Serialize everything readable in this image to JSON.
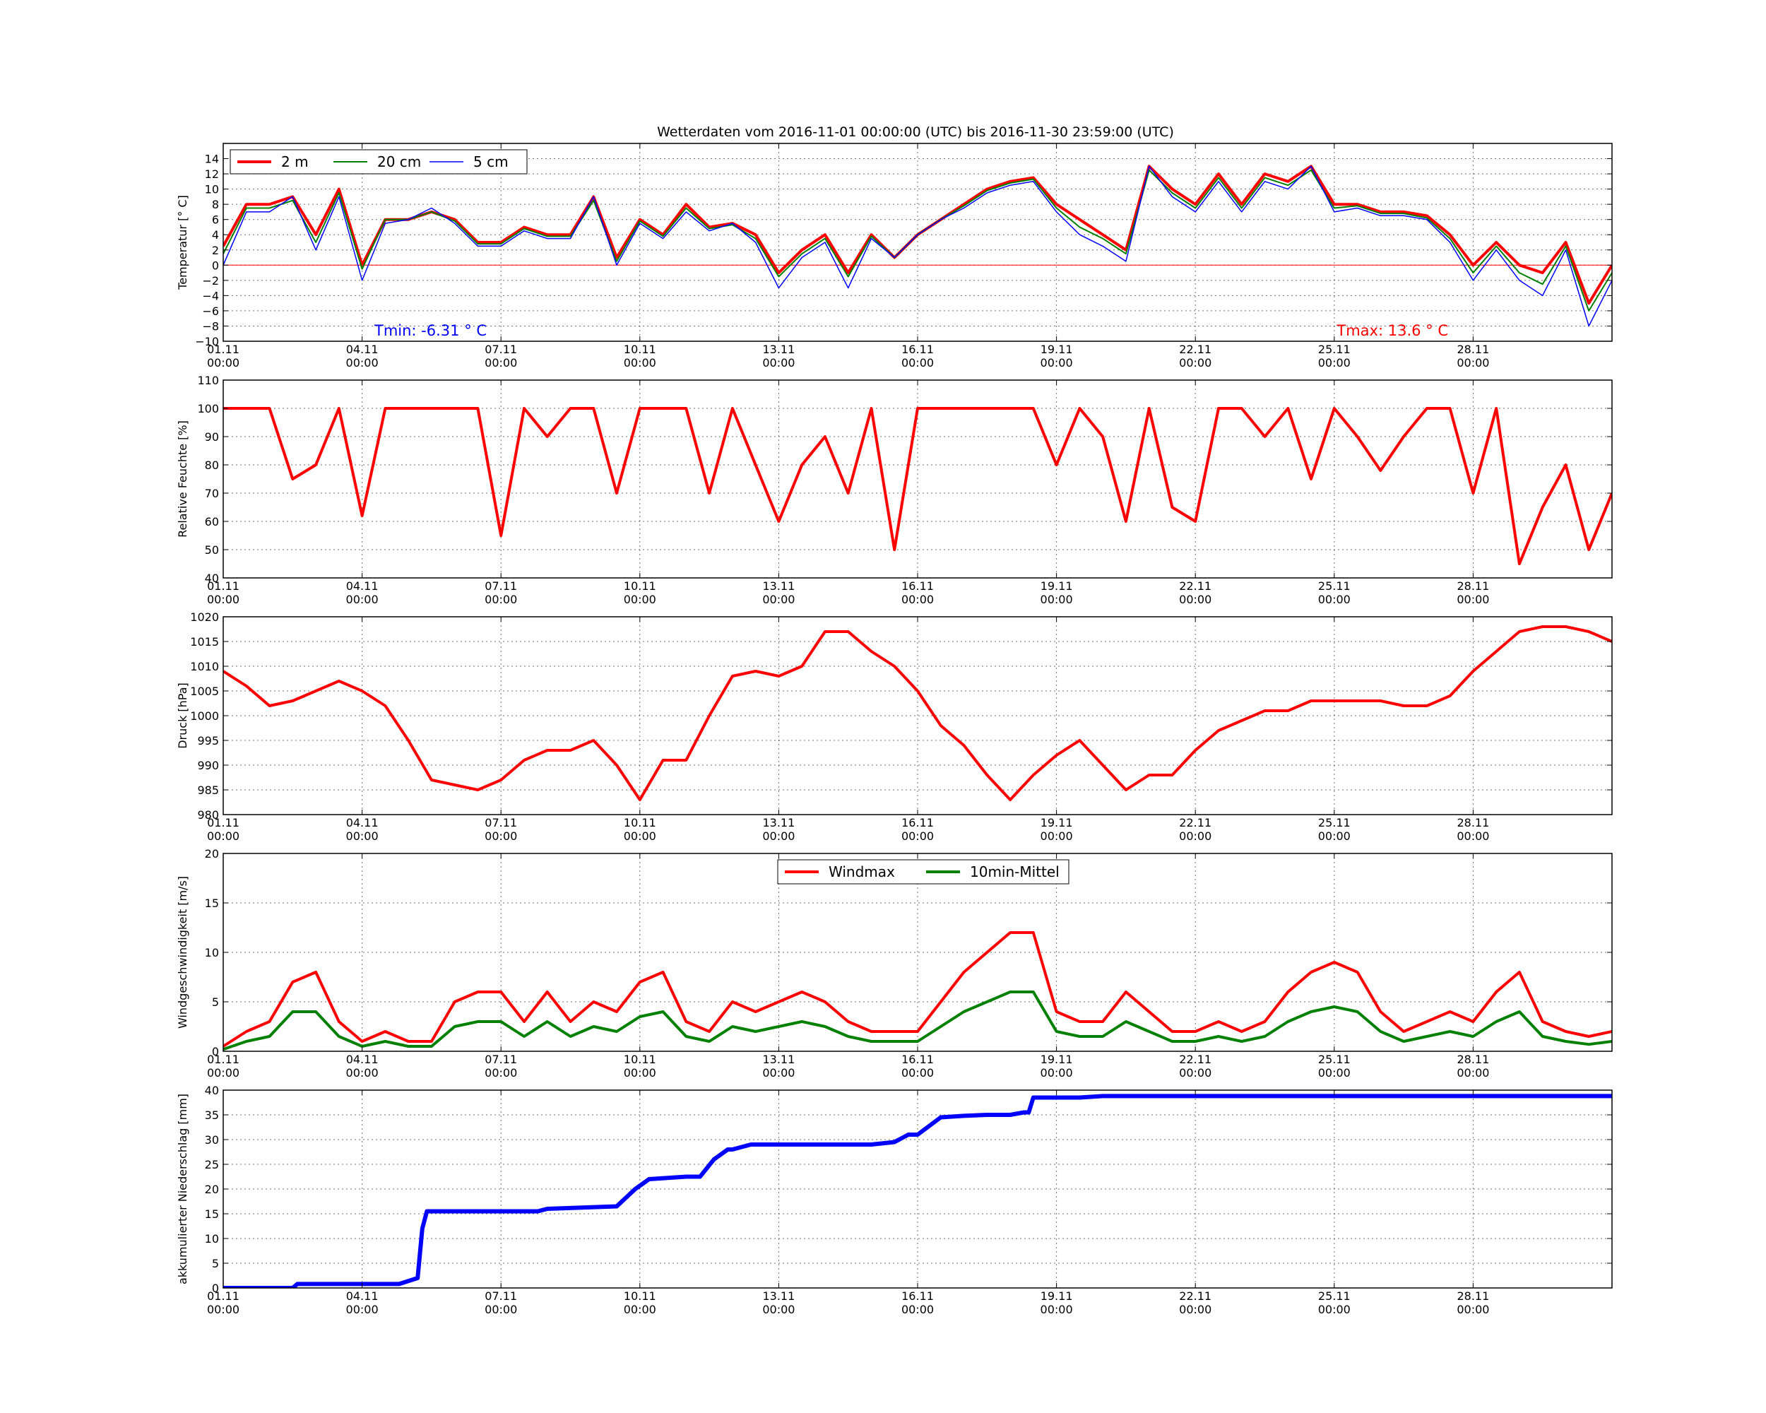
{
  "title": "Wetterdaten vom 2016-11-01 00:00:00 (UTC) bis 2016-11-30 23:59:00 (UTC)",
  "x_ticks": [
    {
      "day": 0,
      "label": "01.11\n00:00"
    },
    {
      "day": 3,
      "label": "04.11\n00:00"
    },
    {
      "day": 6,
      "label": "07.11\n00:00"
    },
    {
      "day": 9,
      "label": "10.11\n00:00"
    },
    {
      "day": 12,
      "label": "13.11\n00:00"
    },
    {
      "day": 15,
      "label": "16.11\n00:00"
    },
    {
      "day": 18,
      "label": "19.11\n00:00"
    },
    {
      "day": 21,
      "label": "22.11\n00:00"
    },
    {
      "day": 24,
      "label": "25.11\n00:00"
    },
    {
      "day": 27,
      "label": "28.11\n00:00"
    }
  ],
  "colors": {
    "red": "#ff0000",
    "green": "#008000",
    "blue": "#0000ff",
    "zero_line": "#ff0000"
  },
  "chart_data": [
    {
      "type": "line",
      "id": "temperature",
      "ylabel": "Temperatur [° C]",
      "xlim": [
        0,
        30
      ],
      "ylim": [
        -10,
        16
      ],
      "yticks": [
        -10,
        -8,
        -6,
        -4,
        -2,
        0,
        2,
        4,
        6,
        8,
        10,
        12,
        14
      ],
      "grid": true,
      "legend": {
        "placement": "top-left",
        "columns": 3
      },
      "annotations": [
        {
          "text": "Tmin: -6.31 ° C",
          "color": "#0000ff",
          "anchor": "bottom-left"
        },
        {
          "text": "Tmax: 13.6 ° C",
          "color": "#ff0000",
          "anchor": "bottom-right"
        }
      ],
      "reference_line": {
        "y": 0,
        "color": "#ff0000"
      },
      "x": [
        0,
        0.5,
        1,
        1.5,
        2,
        2.5,
        3,
        3.5,
        4,
        4.5,
        5,
        5.5,
        6,
        6.5,
        7,
        7.5,
        8,
        8.5,
        9,
        9.5,
        10,
        10.5,
        11,
        11.5,
        12,
        12.5,
        13,
        13.5,
        14,
        14.5,
        15,
        15.5,
        16,
        16.5,
        17,
        17.5,
        18,
        18.5,
        19,
        19.5,
        20,
        20.5,
        21,
        21.5,
        22,
        22.5,
        23,
        23.5,
        24,
        24.5,
        25,
        25.5,
        26,
        26.5,
        27,
        27.5,
        28,
        28.5,
        29,
        29.5,
        30
      ],
      "series": [
        {
          "name": "2 m",
          "color": "#ff0000",
          "width": 4,
          "values": [
            2.5,
            8,
            8,
            9,
            4,
            10,
            0,
            6,
            6,
            7,
            6,
            3,
            3,
            5,
            4,
            4,
            9,
            1,
            6,
            4,
            8,
            5,
            5.5,
            4,
            -1,
            2,
            4,
            -1,
            4,
            1,
            4,
            6,
            8,
            10,
            11,
            11.5,
            8,
            6,
            4,
            2,
            13,
            10,
            8,
            12,
            8,
            12,
            11,
            13,
            8,
            8,
            7,
            7,
            6.5,
            4,
            0,
            3,
            0,
            -1,
            3,
            -5,
            0
          ]
        },
        {
          "name": "20 cm",
          "color": "#008000",
          "width": 2,
          "values": [
            1.5,
            7.5,
            7.5,
            8.5,
            3,
            9.5,
            -0.5,
            6,
            6,
            7,
            5.8,
            2.8,
            2.8,
            4.8,
            3.8,
            3.8,
            8.5,
            0.5,
            5.8,
            3.8,
            7.5,
            4.8,
            5.3,
            3.5,
            -1.5,
            1.5,
            3.5,
            -1.5,
            3.8,
            1,
            4,
            6,
            7.8,
            9.8,
            10.8,
            11.3,
            7.5,
            5,
            3.5,
            1.5,
            12.5,
            9.5,
            7.5,
            11.5,
            7.5,
            11.5,
            10.5,
            12.5,
            7.5,
            7.8,
            6.8,
            6.8,
            6.2,
            3.5,
            -1,
            2.5,
            -1,
            -2.5,
            2.5,
            -6,
            -1
          ]
        },
        {
          "name": "5 cm",
          "color": "#0000ff",
          "width": 1.5,
          "values": [
            0,
            7,
            7,
            9,
            2,
            9,
            -2,
            5.5,
            6,
            7.5,
            5.5,
            2.5,
            2.5,
            4.5,
            3.5,
            3.5,
            9,
            0,
            5.5,
            3.5,
            7,
            4.5,
            5.5,
            3,
            -3,
            1,
            3,
            -3,
            3.5,
            1,
            4,
            6,
            7.5,
            9.5,
            10.5,
            11,
            7,
            4,
            2.5,
            0.5,
            13,
            9,
            7,
            11,
            7,
            11,
            10,
            13,
            7,
            7.5,
            6.5,
            6.5,
            6,
            3,
            -2,
            2,
            -2,
            -4,
            2,
            -8,
            -2
          ]
        }
      ]
    },
    {
      "type": "line",
      "id": "humidity",
      "ylabel": "Relative Feuchte [%]",
      "xlim": [
        0,
        30
      ],
      "ylim": [
        40,
        110
      ],
      "yticks": [
        40,
        50,
        60,
        70,
        80,
        90,
        100,
        110
      ],
      "grid": true,
      "x": [
        0,
        0.5,
        1,
        1.5,
        2,
        2.5,
        3,
        3.5,
        4,
        4.5,
        5,
        5.5,
        6,
        6.5,
        7,
        7.5,
        8,
        8.5,
        9,
        9.5,
        10,
        10.5,
        11,
        11.5,
        12,
        12.5,
        13,
        13.5,
        14,
        14.5,
        15,
        15.5,
        16,
        16.5,
        17,
        17.5,
        18,
        18.5,
        19,
        19.5,
        20,
        20.5,
        21,
        21.5,
        22,
        22.5,
        23,
        23.5,
        24,
        24.5,
        25,
        25.5,
        26,
        26.5,
        27,
        27.5,
        28,
        28.5,
        29,
        29.5,
        30
      ],
      "series": [
        {
          "name": "",
          "color": "#ff0000",
          "width": 4,
          "values": [
            100,
            100,
            100,
            75,
            80,
            100,
            62,
            100,
            100,
            100,
            100,
            100,
            55,
            100,
            90,
            100,
            100,
            70,
            100,
            100,
            100,
            70,
            100,
            80,
            60,
            80,
            90,
            70,
            100,
            50,
            100,
            100,
            100,
            100,
            100,
            100,
            80,
            100,
            90,
            60,
            100,
            65,
            60,
            100,
            100,
            90,
            100,
            75,
            100,
            90,
            78,
            90,
            100,
            100,
            70,
            100,
            45,
            65,
            80,
            50,
            70
          ]
        }
      ]
    },
    {
      "type": "line",
      "id": "pressure",
      "ylabel": "Druck [hPa]",
      "xlim": [
        0,
        30
      ],
      "ylim": [
        980,
        1020
      ],
      "yticks": [
        980,
        985,
        990,
        995,
        1000,
        1005,
        1010,
        1015,
        1020
      ],
      "grid": true,
      "x": [
        0,
        0.5,
        1,
        1.5,
        2,
        2.5,
        3,
        3.5,
        4,
        4.5,
        5,
        5.5,
        6,
        6.5,
        7,
        7.5,
        8,
        8.5,
        9,
        9.5,
        10,
        10.5,
        11,
        11.5,
        12,
        12.5,
        13,
        13.5,
        14,
        14.5,
        15,
        15.5,
        16,
        16.5,
        17,
        17.5,
        18,
        18.5,
        19,
        19.5,
        20,
        20.5,
        21,
        21.5,
        22,
        22.5,
        23,
        23.5,
        24,
        24.5,
        25,
        25.5,
        26,
        26.5,
        27,
        27.5,
        28,
        28.5,
        29,
        29.5,
        30
      ],
      "series": [
        {
          "name": "",
          "color": "#ff0000",
          "width": 4,
          "values": [
            1009,
            1006,
            1002,
            1003,
            1005,
            1007,
            1005,
            1002,
            995,
            987,
            986,
            985,
            987,
            991,
            993,
            993,
            995,
            990,
            983,
            991,
            991,
            1000,
            1008,
            1009,
            1008,
            1010,
            1017,
            1017,
            1013,
            1010,
            1005,
            998,
            994,
            988,
            983,
            988,
            992,
            995,
            990,
            985,
            988,
            988,
            993,
            997,
            999,
            1001,
            1001,
            1003,
            1003,
            1003,
            1003,
            1002,
            1002,
            1004,
            1009,
            1013,
            1017,
            1018,
            1018,
            1017,
            1015
          ]
        }
      ]
    },
    {
      "type": "line",
      "id": "wind",
      "ylabel": "Windgeschwindigkeit [m/s]",
      "xlim": [
        0,
        30
      ],
      "ylim": [
        0,
        20
      ],
      "yticks": [
        0,
        5,
        10,
        15,
        20
      ],
      "grid": true,
      "legend": {
        "placement": "top-center",
        "columns": 2
      },
      "x": [
        0,
        0.5,
        1,
        1.5,
        2,
        2.5,
        3,
        3.5,
        4,
        4.5,
        5,
        5.5,
        6,
        6.5,
        7,
        7.5,
        8,
        8.5,
        9,
        9.5,
        10,
        10.5,
        11,
        11.5,
        12,
        12.5,
        13,
        13.5,
        14,
        14.5,
        15,
        15.5,
        16,
        16.5,
        17,
        17.5,
        18,
        18.5,
        19,
        19.5,
        20,
        20.5,
        21,
        21.5,
        22,
        22.5,
        23,
        23.5,
        24,
        24.5,
        25,
        25.5,
        26,
        26.5,
        27,
        27.5,
        28,
        28.5,
        29,
        29.5,
        30
      ],
      "series": [
        {
          "name": "Windmax",
          "color": "#ff0000",
          "width": 4,
          "values": [
            0.5,
            2,
            3,
            7,
            8,
            3,
            1,
            2,
            1,
            1,
            5,
            6,
            6,
            3,
            6,
            3,
            5,
            4,
            7,
            8,
            3,
            2,
            5,
            4,
            5,
            6,
            5,
            3,
            2,
            2,
            2,
            5,
            8,
            10,
            12,
            12,
            4,
            3,
            3,
            6,
            4,
            2,
            2,
            3,
            2,
            3,
            6,
            8,
            9,
            8,
            4,
            2,
            3,
            4,
            3,
            6,
            8,
            3,
            2,
            1.5,
            2
          ]
        },
        {
          "name": "10min-Mittel",
          "color": "#008000",
          "width": 4,
          "values": [
            0.2,
            1,
            1.5,
            4,
            4,
            1.5,
            0.5,
            1,
            0.5,
            0.5,
            2.5,
            3,
            3,
            1.5,
            3,
            1.5,
            2.5,
            2,
            3.5,
            4,
            1.5,
            1,
            2.5,
            2,
            2.5,
            3,
            2.5,
            1.5,
            1,
            1,
            1,
            2.5,
            4,
            5,
            6,
            6,
            2,
            1.5,
            1.5,
            3,
            2,
            1,
            1,
            1.5,
            1,
            1.5,
            3,
            4,
            4.5,
            4,
            2,
            1,
            1.5,
            2,
            1.5,
            3,
            4,
            1.5,
            1,
            0.7,
            1
          ]
        }
      ]
    },
    {
      "type": "line",
      "id": "precipitation",
      "ylabel": "akkumulierter Niederschlag [mm]",
      "xlim": [
        0,
        30
      ],
      "ylim": [
        0,
        40
      ],
      "yticks": [
        0,
        5,
        10,
        15,
        20,
        25,
        30,
        35,
        40
      ],
      "grid": true,
      "x": [
        0,
        1.5,
        1.6,
        3.8,
        4.2,
        4.3,
        4.4,
        5,
        6,
        6.8,
        7,
        8.5,
        8.9,
        9.2,
        10,
        10.3,
        10.6,
        10.9,
        11,
        11.4,
        12,
        13,
        14,
        14.5,
        14.8,
        15,
        15.5,
        16,
        16.5,
        17,
        17.3,
        17.4,
        17.5,
        18,
        18.5,
        19,
        20,
        25,
        30
      ],
      "series": [
        {
          "name": "",
          "color": "#0000ff",
          "width": 6,
          "values": [
            0,
            0,
            0.8,
            0.8,
            2,
            12,
            15.5,
            15.5,
            15.5,
            15.5,
            16,
            16.5,
            20,
            22,
            22.5,
            22.5,
            26,
            28,
            28,
            29,
            29,
            29,
            29,
            29.5,
            31,
            31,
            34.5,
            34.8,
            35,
            35,
            35.5,
            35.5,
            38.5,
            38.5,
            38.5,
            38.8,
            38.8,
            38.8,
            38.8
          ]
        }
      ]
    }
  ]
}
